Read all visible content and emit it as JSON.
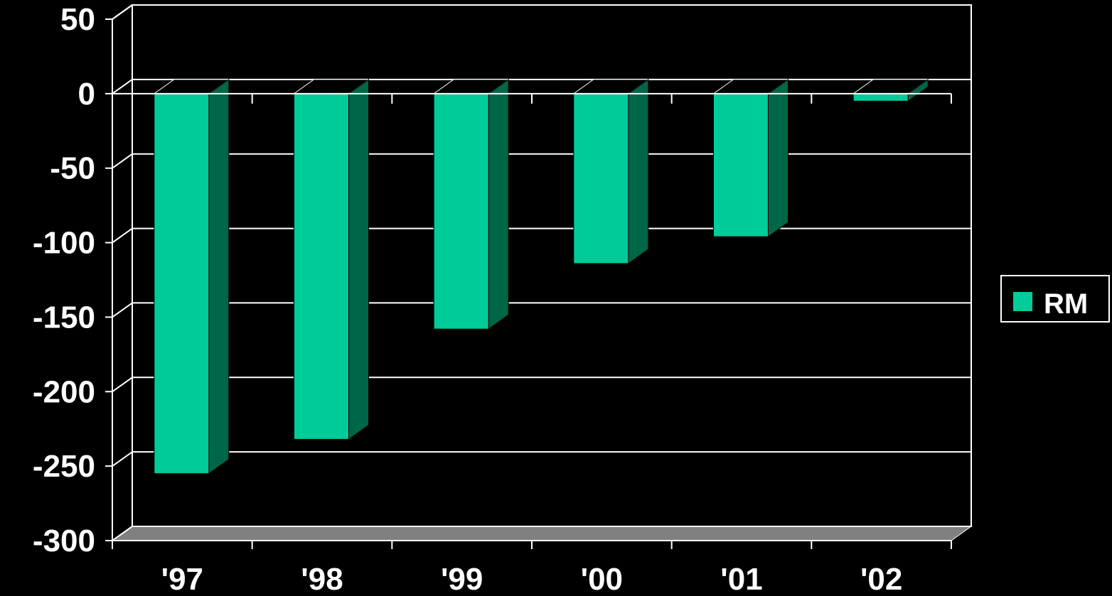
{
  "chart_data": {
    "type": "bar",
    "categories": [
      "'97",
      "'98",
      "'99",
      "'00",
      "'01",
      "'02"
    ],
    "series": [
      {
        "name": "RM",
        "values": [
          -255,
          -232,
          -158,
          -114,
          -96,
          -5
        ]
      }
    ],
    "ylim": [
      -300,
      50
    ],
    "yticks": [
      "50",
      "0",
      "-50",
      "-100",
      "-150",
      "-200",
      "-250",
      "-300"
    ],
    "grid": true,
    "legend": "right",
    "colors": {
      "background": "#000000",
      "bar_front": "#00cc99",
      "bar_side": "#006648",
      "floor": "#808080",
      "grid": "#ffffff",
      "text": "#ffffff"
    }
  }
}
